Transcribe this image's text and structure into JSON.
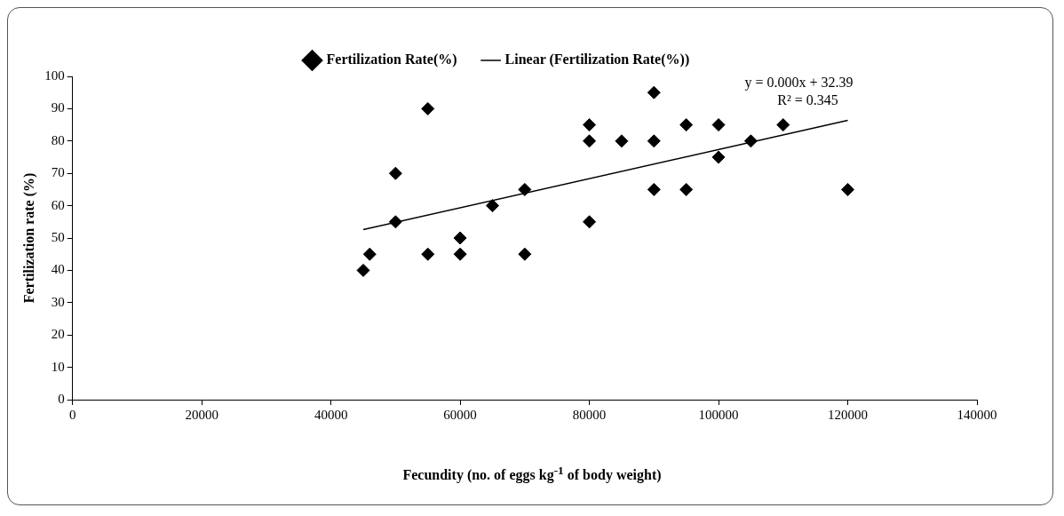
{
  "chart_data": {
    "type": "scatter",
    "xlabel": "Fecundity (no. of eggs kg$^{-1}$ of body weight)",
    "ylabel": "Fertilization rate (%)",
    "xlim": [
      0,
      140000
    ],
    "xticks": [
      0,
      20000,
      40000,
      60000,
      80000,
      100000,
      120000,
      140000
    ],
    "ylim": [
      0,
      100
    ],
    "yticks": [
      0,
      10,
      20,
      30,
      40,
      50,
      60,
      70,
      80,
      90,
      100
    ],
    "grid": false,
    "legend": "top",
    "marker": "diamond",
    "series": [
      {
        "name": "Fertilization Rate(%)",
        "color": "#000000",
        "x": [
          45000,
          46000,
          50000,
          50000,
          55000,
          55000,
          60000,
          60000,
          65000,
          70000,
          70000,
          80000,
          80000,
          80000,
          85000,
          90000,
          90000,
          90000,
          95000,
          95000,
          100000,
          100000,
          105000,
          110000,
          120000
        ],
        "values": [
          40,
          45,
          70,
          55,
          90,
          45,
          50,
          45,
          60,
          65,
          45,
          85,
          80,
          55,
          80,
          95,
          80,
          65,
          85,
          65,
          85,
          75,
          80,
          85,
          65
        ]
      },
      {
        "name": "Linear (Fertilization Rate(%))",
        "type": "line",
        "color": "#000000",
        "marker": "none",
        "line_style": "solid",
        "x": [
          45000,
          120000
        ],
        "values": [
          52.6,
          86.4
        ]
      }
    ],
    "annotations": [
      "y = 0.000x + 32.39",
      "R² = 0.345"
    ]
  }
}
